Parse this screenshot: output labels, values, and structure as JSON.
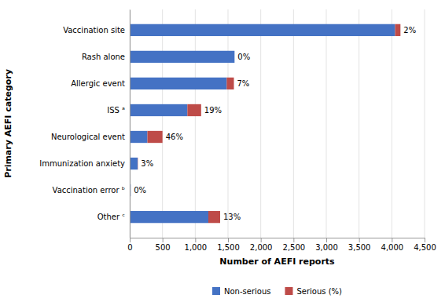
{
  "chart_data": {
    "type": "bar",
    "orientation": "horizontal",
    "stacked": true,
    "grid": true,
    "legend": "bottom",
    "categories": [
      "Other ᶜ",
      "Vaccination error ᵇ",
      "Immunization anxiety",
      "Neurological event",
      "ISS ᵃ",
      "Allergic event",
      "Rash alone",
      "Vaccination site"
    ],
    "series": [
      {
        "name": "Non-serious",
        "color": "#4472C4",
        "values": [
          1200,
          15,
          120,
          270,
          880,
          1480,
          1600,
          4050
        ]
      },
      {
        "name": "Serious (%)",
        "color": "#BE4B48",
        "values": [
          180,
          0,
          4,
          230,
          210,
          110,
          0,
          82
        ],
        "pct_labels": [
          "13%",
          "0%",
          "3%",
          "46%",
          "19%",
          "7%",
          "0%",
          "2%"
        ]
      }
    ],
    "xlabel": "Number of AEFI reports",
    "ylabel": "Primary AEFI category",
    "xlim": [
      0,
      4500
    ],
    "xticks": [
      0,
      500,
      {
        "value": 1000,
        "label": "1,000"
      },
      {
        "value": 1500,
        "label": "1,500"
      },
      {
        "value": 2000,
        "label": "2,000"
      },
      {
        "value": 2500,
        "label": "2,500"
      },
      {
        "value": 3000,
        "label": "3,000"
      },
      {
        "value": 3500,
        "label": "3,500"
      },
      {
        "value": 4000,
        "label": "4,000"
      },
      {
        "value": 4500,
        "label": "4,500"
      }
    ]
  }
}
